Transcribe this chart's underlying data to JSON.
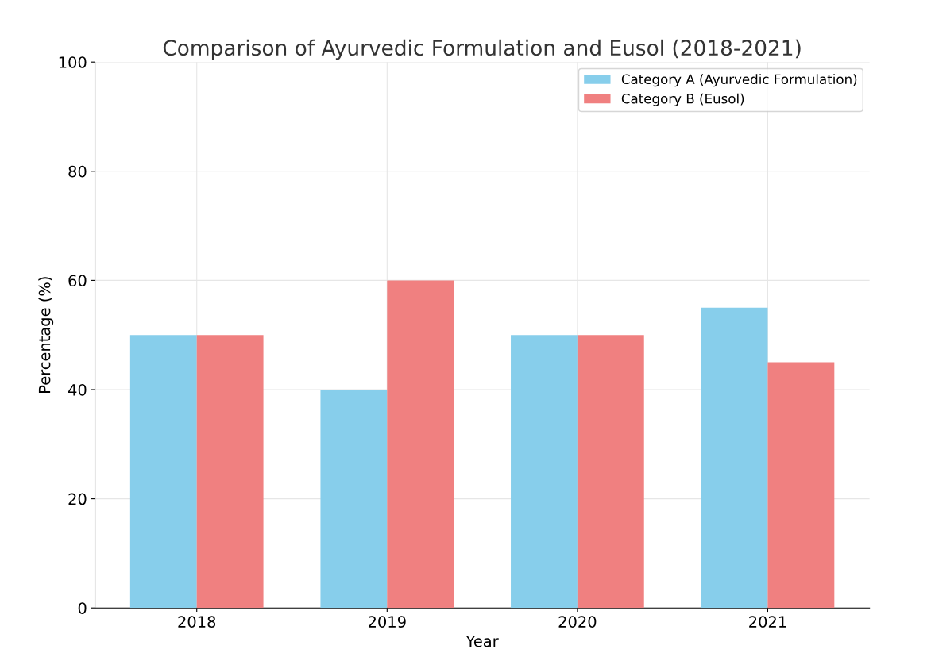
{
  "chart_data": {
    "type": "bar",
    "title": "Comparison of Ayurvedic Formulation and Eusol (2018-2021)",
    "xlabel": "Year",
    "ylabel": "Percentage (%)",
    "categories": [
      "2018",
      "2019",
      "2020",
      "2021"
    ],
    "series": [
      {
        "name": "Category A (Ayurvedic Formulation)",
        "color": "#87ceeb",
        "values": [
          50,
          40,
          50,
          55
        ]
      },
      {
        "name": "Category B (Eusol)",
        "color": "#f08080",
        "values": [
          50,
          60,
          50,
          45
        ]
      }
    ],
    "ylim": [
      0,
      100
    ],
    "yticks": [
      0,
      20,
      40,
      60,
      80,
      100
    ],
    "grid": true,
    "legend": "top right"
  }
}
